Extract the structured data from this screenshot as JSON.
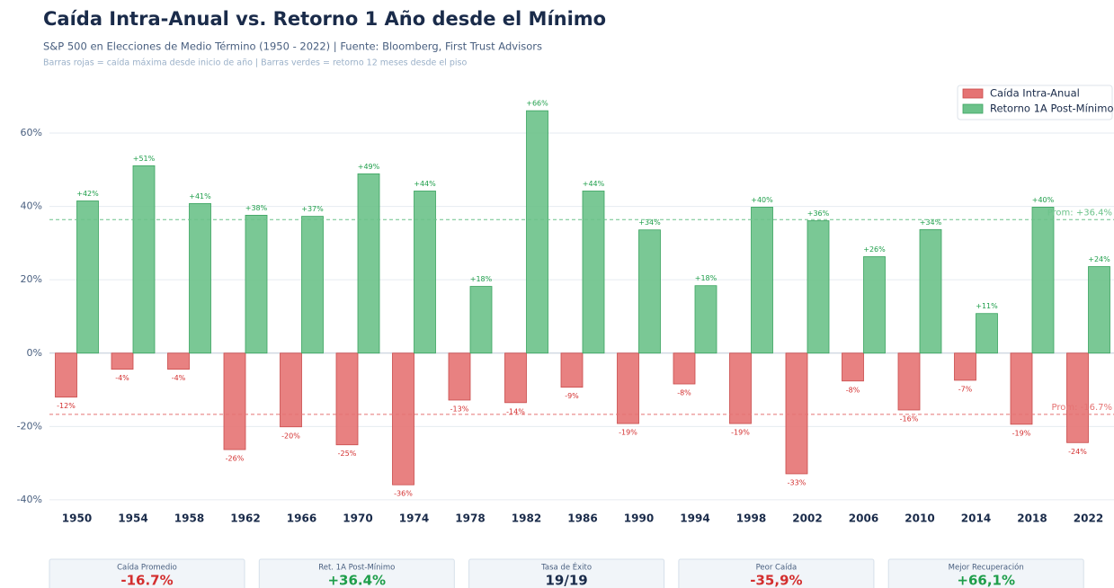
{
  "chart_data": {
    "type": "bar",
    "title": "Caída Intra-Anual vs. Retorno 1 Año desde el Mínimo",
    "subtitle": "S&P 500 en Elecciones de Medio Término (1950 - 2022) | Fuente: Bloomberg, First Trust Advisors",
    "note": "Barras rojas = caída máxima desde inicio de año  |  Barras verdes = retorno 12 meses desde el piso",
    "categories": [
      "1950",
      "1954",
      "1958",
      "1962",
      "1966",
      "1970",
      "1974",
      "1978",
      "1982",
      "1986",
      "1990",
      "1994",
      "1998",
      "2002",
      "2006",
      "2010",
      "2014",
      "2018",
      "2022"
    ],
    "series": [
      {
        "name": "Caída Intra-Anual",
        "color": "#e57373",
        "values": [
          -12.0,
          -4.4,
          -4.4,
          -26.3,
          -20.1,
          -25.0,
          -35.9,
          -12.8,
          -13.5,
          -9.3,
          -19.2,
          -8.4,
          -19.2,
          -32.9,
          -7.6,
          -15.5,
          -7.4,
          -19.4,
          -24.4
        ],
        "value_labels": [
          "-12%",
          "-4%",
          "-4%",
          "-26%",
          "-20%",
          "-25%",
          "-36%",
          "-13%",
          "-14%",
          "-9%",
          "-19%",
          "-8%",
          "-19%",
          "-33%",
          "-8%",
          "-16%",
          "-7%",
          "-19%",
          "-24%"
        ]
      },
      {
        "name": "Retorno 1A Post-Mínimo",
        "color": "#6cc28a",
        "values": [
          41.5,
          51.1,
          40.8,
          37.6,
          37.3,
          48.9,
          44.2,
          18.2,
          66.1,
          44.2,
          33.6,
          18.4,
          39.8,
          36.1,
          26.3,
          33.7,
          10.8,
          39.8,
          23.6
        ],
        "value_labels": [
          "+42%",
          "+51%",
          "+41%",
          "+38%",
          "+37%",
          "+49%",
          "+44%",
          "+18%",
          "+66%",
          "+44%",
          "+34%",
          "+18%",
          "+40%",
          "+36%",
          "+26%",
          "+34%",
          "+11%",
          "+40%",
          "+24%"
        ]
      }
    ],
    "ylim": [
      -41,
      73
    ],
    "yticks": [
      {
        "value": -40,
        "label": "-40%"
      },
      {
        "value": -20,
        "label": "-20%"
      },
      {
        "value": 0,
        "label": "0%"
      },
      {
        "value": 20,
        "label": "20%"
      },
      {
        "value": 40,
        "label": "40%"
      },
      {
        "value": 60,
        "label": "60%"
      }
    ],
    "grid": true,
    "legend": "upper right",
    "reference_lines": [
      {
        "value": 36.4,
        "label": "Prom: +36.4%",
        "color": "#6cc28a"
      },
      {
        "value": -16.7,
        "label": "Prom: -16.7%",
        "color": "#e57373"
      }
    ]
  },
  "cards": [
    {
      "label": "Caída Promedio",
      "value": "-16.7%",
      "color": "#d32f2f"
    },
    {
      "label": "Ret. 1A Post-Mínimo",
      "value": "+36.4%",
      "color": "#1e9e4a"
    },
    {
      "label": "Tasa de Éxito",
      "value": "19/19",
      "color": "#1a2b4a"
    },
    {
      "label": "Peor Caída",
      "value": "-35,9%",
      "color": "#d32f2f"
    },
    {
      "label": "Mejor Recuperación",
      "value": "+66,1%",
      "color": "#1e9e4a"
    }
  ]
}
